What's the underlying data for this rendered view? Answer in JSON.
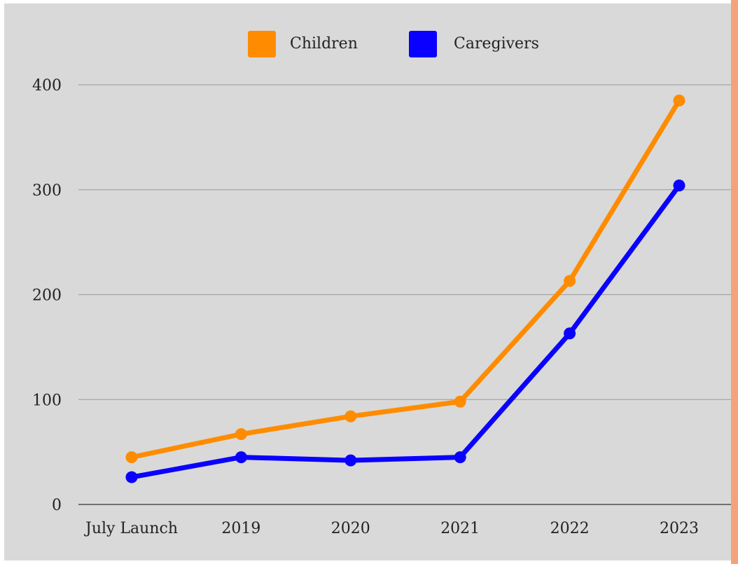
{
  "colors": {
    "page_background": "#ffffff",
    "plot_background": "#d9d9d9",
    "right_border_accent": "#f3a37a",
    "gridline": "#a6a6a6",
    "axis_line": "#4d4d4d"
  },
  "chart_data": {
    "type": "line",
    "title": "",
    "xlabel": "",
    "ylabel": "",
    "categories": [
      "July Launch",
      "2019",
      "2020",
      "2021",
      "2022",
      "2023"
    ],
    "series": [
      {
        "name": "Children",
        "color": "#ff8c00",
        "values": [
          45,
          67,
          84,
          98,
          213,
          385
        ]
      },
      {
        "name": "Caregivers",
        "color": "#0a00ff",
        "values": [
          26,
          45,
          42,
          45,
          163,
          304
        ]
      }
    ],
    "ylim": [
      0,
      400
    ],
    "yticks": [
      0,
      100,
      200,
      300,
      400
    ],
    "grid": true,
    "legend_position": "top-center"
  }
}
